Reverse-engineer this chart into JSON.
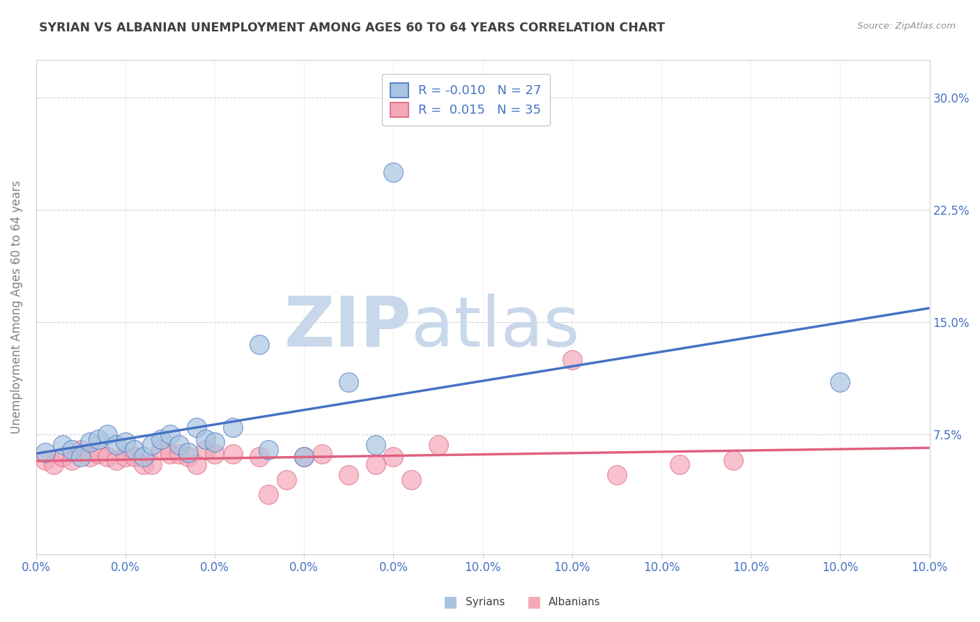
{
  "title": "SYRIAN VS ALBANIAN UNEMPLOYMENT AMONG AGES 60 TO 64 YEARS CORRELATION CHART",
  "source": "Source: ZipAtlas.com",
  "ylabel": "Unemployment Among Ages 60 to 64 years",
  "xlim": [
    0.0,
    0.1
  ],
  "ylim": [
    -0.005,
    0.325
  ],
  "xticks": [
    0.0,
    0.01,
    0.02,
    0.03,
    0.04,
    0.05,
    0.06,
    0.07,
    0.08,
    0.09,
    0.1
  ],
  "xtick_labels_show": {
    "0.0": "0.0%",
    "0.1": "10.0%"
  },
  "yticks": [
    0.0,
    0.075,
    0.15,
    0.225,
    0.3
  ],
  "ytick_labels": [
    "",
    "7.5%",
    "15.0%",
    "22.5%",
    "30.0%"
  ],
  "legend_r_syrians": "-0.010",
  "legend_n_syrians": "27",
  "legend_r_albanians": "0.015",
  "legend_n_albanians": "35",
  "syrians_color": "#a8c4e0",
  "albanians_color": "#f4a8b8",
  "syrians_line_color": "#4472c4",
  "albanians_line_color": "#e06080",
  "watermark_zip": "ZIP",
  "watermark_atlas": "atlas",
  "watermark_color": "#c8d8ea",
  "title_color": "#404040",
  "axis_label_color": "#808080",
  "tick_label_color": "#4472c4",
  "grid_color": "#d0d0d0",
  "syrians_x": [
    0.001,
    0.003,
    0.004,
    0.005,
    0.006,
    0.007,
    0.008,
    0.009,
    0.01,
    0.011,
    0.012,
    0.013,
    0.014,
    0.015,
    0.016,
    0.017,
    0.018,
    0.019,
    0.02,
    0.022,
    0.025,
    0.026,
    0.03,
    0.035,
    0.038,
    0.04,
    0.09
  ],
  "syrians_y": [
    0.063,
    0.068,
    0.065,
    0.06,
    0.07,
    0.072,
    0.075,
    0.068,
    0.07,
    0.065,
    0.06,
    0.068,
    0.072,
    0.075,
    0.068,
    0.063,
    0.08,
    0.072,
    0.07,
    0.08,
    0.135,
    0.065,
    0.06,
    0.11,
    0.068,
    0.25,
    0.11
  ],
  "albanians_x": [
    0.001,
    0.002,
    0.003,
    0.004,
    0.005,
    0.006,
    0.007,
    0.008,
    0.009,
    0.01,
    0.011,
    0.012,
    0.013,
    0.014,
    0.015,
    0.016,
    0.017,
    0.018,
    0.019,
    0.02,
    0.022,
    0.025,
    0.026,
    0.028,
    0.03,
    0.032,
    0.035,
    0.038,
    0.04,
    0.042,
    0.045,
    0.06,
    0.065,
    0.072,
    0.078
  ],
  "albanians_y": [
    0.058,
    0.055,
    0.06,
    0.058,
    0.065,
    0.06,
    0.062,
    0.06,
    0.058,
    0.06,
    0.06,
    0.055,
    0.055,
    0.065,
    0.062,
    0.062,
    0.06,
    0.055,
    0.065,
    0.062,
    0.062,
    0.06,
    0.035,
    0.045,
    0.06,
    0.062,
    0.048,
    0.055,
    0.06,
    0.045,
    0.068,
    0.125,
    0.048,
    0.055,
    0.058
  ]
}
